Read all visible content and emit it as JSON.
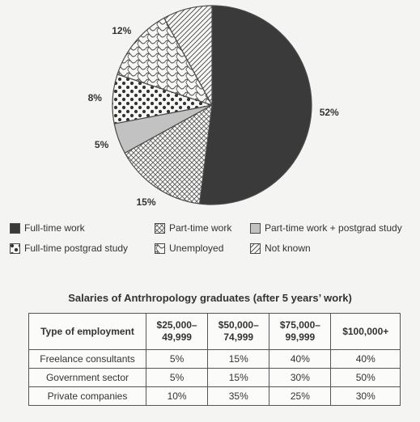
{
  "chart_data": [
    {
      "type": "pie",
      "title": "",
      "slices": [
        {
          "label": "Full-time work",
          "value": 52,
          "display": "52%",
          "pattern": "solid-dark"
        },
        {
          "label": "Part-time work",
          "value": 15,
          "display": "15%",
          "pattern": "crosshatch"
        },
        {
          "label": "Part-time work + postgrad study",
          "value": 5,
          "display": "5%",
          "pattern": "light-grey"
        },
        {
          "label": "Full-time postgrad study",
          "value": 8,
          "display": "8%",
          "pattern": "dots"
        },
        {
          "label": "Unemployed",
          "value": 12,
          "display": "12%",
          "pattern": "wavy"
        },
        {
          "label": "Not known",
          "value": 8,
          "display": "8%",
          "pattern": "diagonal"
        }
      ],
      "legend": [
        {
          "label": "Full-time work",
          "pattern": "solid-dark"
        },
        {
          "label": "Part-time work",
          "pattern": "crosshatch"
        },
        {
          "label": "Part-time work + postgrad study",
          "pattern": "light-grey"
        },
        {
          "label": "Full-time postgrad study",
          "pattern": "dots"
        },
        {
          "label": "Unemployed",
          "pattern": "wavy"
        },
        {
          "label": "Not known",
          "pattern": "diagonal"
        }
      ],
      "legend_placement": "below"
    },
    {
      "type": "table",
      "title": "Salaries of Antrhropology graduates (after 5 years’ work)",
      "columns": [
        "Type of employment",
        "$25,000–\n49,999",
        "$50,000–\n74,999",
        "$75,000–\n99,999",
        "$100,000+"
      ],
      "rows": [
        [
          "Freelance consultants",
          "5%",
          "15%",
          "40%",
          "40%"
        ],
        [
          "Government sector",
          "5%",
          "15%",
          "30%",
          "50%"
        ],
        [
          "Private companies",
          "10%",
          "35%",
          "25%",
          "30%"
        ]
      ]
    }
  ],
  "colors": {
    "solid_dark": "#3a3a3a",
    "light_grey": "#c2c2c2",
    "outline": "#4a4a4a",
    "background": "#f4f4f2"
  }
}
